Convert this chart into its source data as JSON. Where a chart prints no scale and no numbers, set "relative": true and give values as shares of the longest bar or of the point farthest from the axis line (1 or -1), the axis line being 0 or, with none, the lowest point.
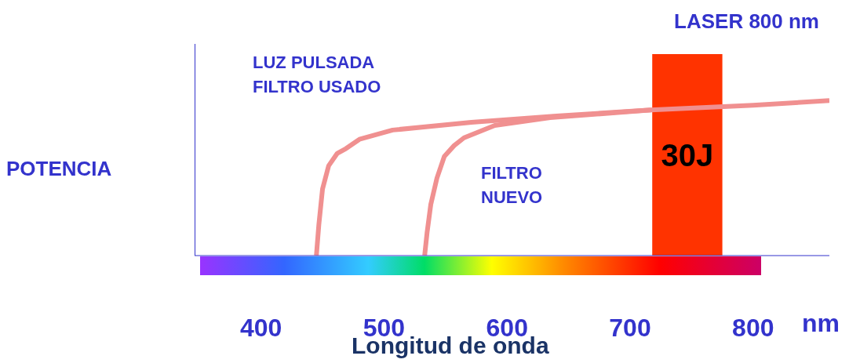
{
  "chart_data": {
    "type": "line",
    "relative": true,
    "ylabel": "POTENCIA",
    "xlabel": "Longitud de onda",
    "xlim": [
      346,
      862
    ],
    "xticks": [
      400,
      500,
      600,
      700,
      800
    ],
    "marker": "none",
    "line_style": "solid",
    "series": [
      {
        "name": "LUZ PULSADA\nFILTRO USADO",
        "color": "#f09090",
        "x": [
          445,
          447,
          450,
          455,
          462,
          469,
          480,
          507,
          571,
          640,
          717,
          800,
          862
        ],
        "values": [
          0,
          0.2,
          0.43,
          0.58,
          0.66,
          0.69,
          0.75,
          0.81,
          0.86,
          0.9,
          0.94,
          0.97,
          1
        ]
      },
      {
        "name": "FILTRO\nNUEVO",
        "color": "#f09090",
        "x": [
          533,
          535,
          538,
          543,
          549,
          557,
          565,
          590,
          635,
          717
        ],
        "values": [
          0,
          0.15,
          0.33,
          0.5,
          0.64,
          0.71,
          0.76,
          0.84,
          0.89,
          0.94
        ]
      }
    ],
    "bands": [
      {
        "axis": "x",
        "from": 718,
        "to": 775,
        "label": "30J",
        "color": "#ff3300"
      }
    ],
    "annotations": [
      "LASER 800 nm",
      "nm"
    ]
  }
}
